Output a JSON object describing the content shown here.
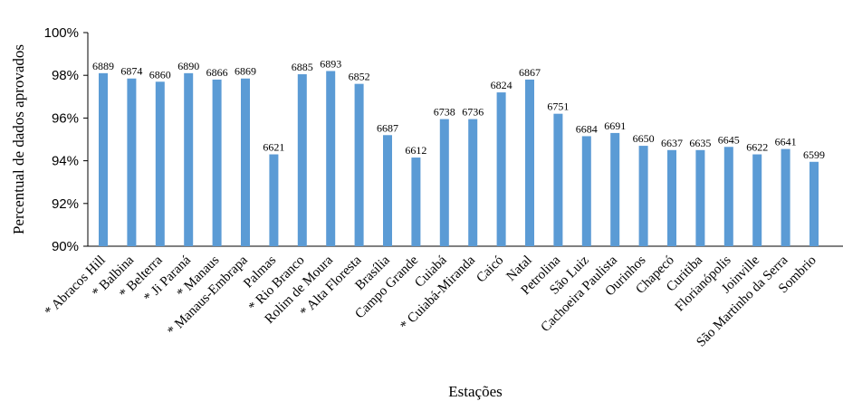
{
  "chart_data": {
    "type": "bar",
    "xlabel": "Estações",
    "ylabel": "Percentual de dados aprovados",
    "ylim": [
      90,
      100
    ],
    "yticks": [
      "90%",
      "92%",
      "94%",
      "96%",
      "98%",
      "100%"
    ],
    "ytick_values": [
      90,
      92,
      94,
      96,
      98,
      100
    ],
    "grid": false,
    "bar_color": "#5b9bd5",
    "categories": [
      "* Abracos Hill",
      "* Balbina",
      "* Belterra",
      "* Ji Paraná",
      "* Manaus",
      "* Manaus-Embrapa",
      "Palmas",
      "* Rio Branco",
      "Rolim de Moura",
      "* Alta Floresta",
      "Brasília",
      "Campo Grande",
      "Cuiabá",
      "* Cuiabá-Miranda",
      "Caicó",
      "Natal",
      "Petrolina",
      "São Luiz",
      "Cachoeira Paulista",
      "Ourinhos",
      "Chapecó",
      "Curitiba",
      "Florianópolis",
      "Joinville",
      "São Martinho da Serra",
      "Sombrio"
    ],
    "values": [
      98.1,
      97.85,
      97.7,
      98.1,
      97.8,
      97.85,
      94.3,
      98.05,
      98.2,
      97.6,
      95.2,
      94.15,
      95.95,
      95.95,
      97.2,
      97.8,
      96.2,
      95.15,
      95.3,
      94.7,
      94.5,
      94.5,
      94.65,
      94.3,
      94.55,
      93.95
    ],
    "data_labels": [
      "6889",
      "6874",
      "6860",
      "6890",
      "6866",
      "6869",
      "6621",
      "6885",
      "6893",
      "6852",
      "6687",
      "6612",
      "6738",
      "6736",
      "6824",
      "6867",
      "6751",
      "6684",
      "6691",
      "6650",
      "6637",
      "6635",
      "6645",
      "6622",
      "6641",
      "6599"
    ]
  }
}
